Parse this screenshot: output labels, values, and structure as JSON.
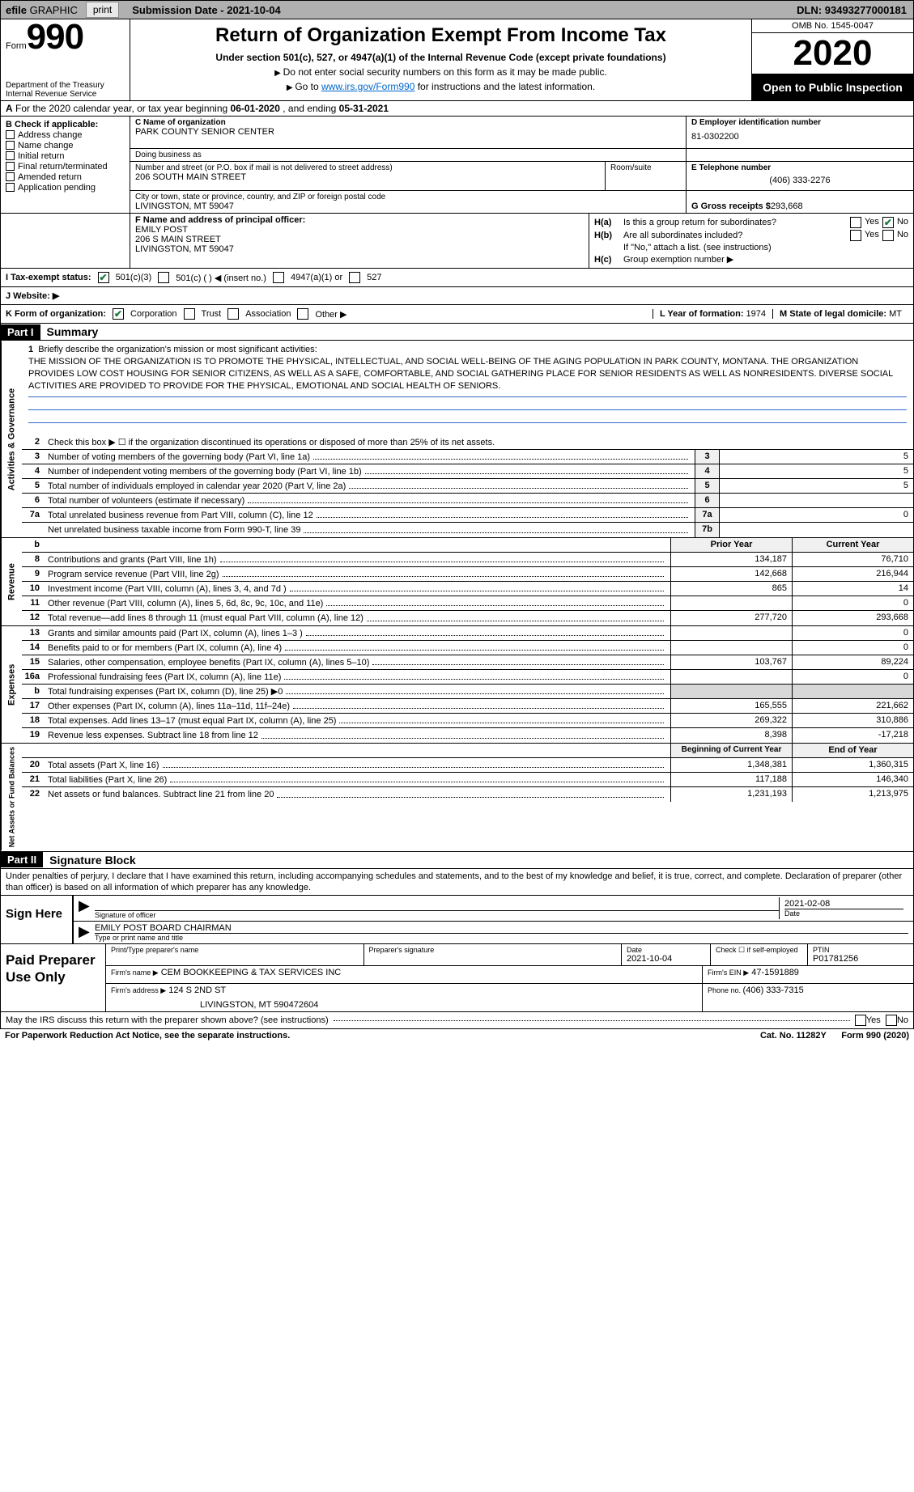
{
  "topbar": {
    "efile_prefix": "efile",
    "efile_graphic": "GRAPHIC",
    "print": "print",
    "submission_label": "Submission Date - ",
    "submission_date": "2021-10-04",
    "dln_label": "DLN: ",
    "dln": "93493277000181"
  },
  "header": {
    "form_prefix": "Form",
    "form_no": "990",
    "dept": "Department of the Treasury\nInternal Revenue Service",
    "title": "Return of Organization Exempt From Income Tax",
    "sub": "Under section 501(c), 527, or 4947(a)(1) of the Internal Revenue Code (except private foundations)",
    "note1": "Do not enter social security numbers on this form as it may be made public.",
    "note2_pre": "Go to ",
    "note2_link": "www.irs.gov/Form990",
    "note2_post": " for instructions and the latest information.",
    "omb": "OMB No. 1545-0047",
    "year": "2020",
    "open": "Open to Public Inspection"
  },
  "rowA": {
    "prefix": "A",
    "text": "For the 2020 calendar year, or tax year beginning ",
    "d1": "06-01-2020",
    "mid": " , and ending ",
    "d2": "05-31-2021"
  },
  "B": {
    "label": "B Check if applicable:",
    "items": [
      "Address change",
      "Name change",
      "Initial return",
      "Final return/terminated",
      "Amended return",
      "Application pending"
    ]
  },
  "C": {
    "name_label": "C Name of organization",
    "name": "PARK COUNTY SENIOR CENTER",
    "dba_label": "Doing business as",
    "dba": "",
    "street_label": "Number and street (or P.O. box if mail is not delivered to street address)",
    "street": "206 SOUTH MAIN STREET",
    "room_label": "Room/suite",
    "city_label": "City or town, state or province, country, and ZIP or foreign postal code",
    "city": "LIVINGSTON, MT  59047"
  },
  "D": {
    "label": "D Employer identification number",
    "val": "81-0302200"
  },
  "E": {
    "label": "E Telephone number",
    "val": "(406) 333-2276"
  },
  "G": {
    "label": "G Gross receipts $ ",
    "val": "293,668"
  },
  "F": {
    "label": "F  Name and address of principal officer:",
    "name": "EMILY POST",
    "street": "206 S MAIN STREET",
    "city": "LIVINGSTON, MT  59047"
  },
  "H": {
    "a": "Is this a group return for subordinates?",
    "b": "Are all subordinates included?",
    "note": "If \"No,\" attach a list. (see instructions)",
    "c": "Group exemption number ▶",
    "yes": "Yes",
    "no": "No"
  },
  "I": {
    "label": "I  Tax-exempt status:",
    "o1": "501(c)(3)",
    "o2": "501(c) (  ) ◀ (insert no.)",
    "o3": "4947(a)(1) or",
    "o4": "527"
  },
  "J": {
    "label": "J  Website: ▶"
  },
  "K": {
    "label": "K Form of organization:",
    "o1": "Corporation",
    "o2": "Trust",
    "o3": "Association",
    "o4": "Other ▶",
    "L": "L Year of formation: ",
    "Lval": "1974",
    "M": "M State of legal domicile: ",
    "Mval": "MT"
  },
  "partI": {
    "hdr": "Part I",
    "title": "Summary"
  },
  "mission": {
    "num": "1",
    "label": "Briefly describe the organization's mission or most significant activities:",
    "text": "THE MISSION OF THE ORGANIZATION IS TO PROMOTE THE PHYSICAL, INTELLECTUAL, AND SOCIAL WELL-BEING OF THE AGING POPULATION IN PARK COUNTY, MONTANA. THE ORGANIZATION PROVIDES LOW COST HOUSING FOR SENIOR CITIZENS, AS WELL AS A SAFE, COMFORTABLE, AND SOCIAL GATHERING PLACE FOR SENIOR RESIDENTS AS WELL AS NONRESIDENTS. DIVERSE SOCIAL ACTIVITIES ARE PROVIDED TO PROVIDE FOR THE PHYSICAL, EMOTIONAL AND SOCIAL HEALTH OF SENIORS."
  },
  "gov": [
    {
      "n": "2",
      "d": "Check this box ▶ ☐ if the organization discontinued its operations or disposed of more than 25% of its net assets."
    },
    {
      "n": "3",
      "d": "Number of voting members of the governing body (Part VI, line 1a)",
      "b": "3",
      "v": "5"
    },
    {
      "n": "4",
      "d": "Number of independent voting members of the governing body (Part VI, line 1b)",
      "b": "4",
      "v": "5"
    },
    {
      "n": "5",
      "d": "Total number of individuals employed in calendar year 2020 (Part V, line 2a)",
      "b": "5",
      "v": "5"
    },
    {
      "n": "6",
      "d": "Total number of volunteers (estimate if necessary)",
      "b": "6",
      "v": ""
    },
    {
      "n": "7a",
      "d": "Total unrelated business revenue from Part VIII, column (C), line 12",
      "b": "7a",
      "v": "0"
    },
    {
      "n": "",
      "d": "Net unrelated business taxable income from Form 990-T, line 39",
      "b": "7b",
      "v": ""
    }
  ],
  "rev_hdr": {
    "b": "b",
    "c1": "Prior Year",
    "c2": "Current Year"
  },
  "rev": [
    {
      "n": "8",
      "d": "Contributions and grants (Part VIII, line 1h)",
      "v1": "134,187",
      "v2": "76,710"
    },
    {
      "n": "9",
      "d": "Program service revenue (Part VIII, line 2g)",
      "v1": "142,668",
      "v2": "216,944"
    },
    {
      "n": "10",
      "d": "Investment income (Part VIII, column (A), lines 3, 4, and 7d )",
      "v1": "865",
      "v2": "14"
    },
    {
      "n": "11",
      "d": "Other revenue (Part VIII, column (A), lines 5, 6d, 8c, 9c, 10c, and 11e)",
      "v1": "",
      "v2": "0"
    },
    {
      "n": "12",
      "d": "Total revenue—add lines 8 through 11 (must equal Part VIII, column (A), line 12)",
      "v1": "277,720",
      "v2": "293,668"
    }
  ],
  "exp": [
    {
      "n": "13",
      "d": "Grants and similar amounts paid (Part IX, column (A), lines 1–3 )",
      "v1": "",
      "v2": "0"
    },
    {
      "n": "14",
      "d": "Benefits paid to or for members (Part IX, column (A), line 4)",
      "v1": "",
      "v2": "0"
    },
    {
      "n": "15",
      "d": "Salaries, other compensation, employee benefits (Part IX, column (A), lines 5–10)",
      "v1": "103,767",
      "v2": "89,224"
    },
    {
      "n": "16a",
      "d": "Professional fundraising fees (Part IX, column (A), line 11e)",
      "v1": "",
      "v2": "0"
    },
    {
      "n": "b",
      "d": "Total fundraising expenses (Part IX, column (D), line 25) ▶0",
      "v1": "__shade__",
      "v2": "__shade__"
    },
    {
      "n": "17",
      "d": "Other expenses (Part IX, column (A), lines 11a–11d, 11f–24e)",
      "v1": "165,555",
      "v2": "221,662"
    },
    {
      "n": "18",
      "d": "Total expenses. Add lines 13–17 (must equal Part IX, column (A), line 25)",
      "v1": "269,322",
      "v2": "310,886"
    },
    {
      "n": "19",
      "d": "Revenue less expenses. Subtract line 18 from line 12",
      "v1": "8,398",
      "v2": "-17,218"
    }
  ],
  "na_hdr": {
    "c1": "Beginning of Current Year",
    "c2": "End of Year"
  },
  "na": [
    {
      "n": "20",
      "d": "Total assets (Part X, line 16)",
      "v1": "1,348,381",
      "v2": "1,360,315"
    },
    {
      "n": "21",
      "d": "Total liabilities (Part X, line 26)",
      "v1": "117,188",
      "v2": "146,340"
    },
    {
      "n": "22",
      "d": "Net assets or fund balances. Subtract line 21 from line 20",
      "v1": "1,231,193",
      "v2": "1,213,975"
    }
  ],
  "vlabels": {
    "gov": "Activities & Governance",
    "rev": "Revenue",
    "exp": "Expenses",
    "na": "Net Assets or Fund Balances"
  },
  "partII": {
    "hdr": "Part II",
    "title": "Signature Block"
  },
  "declare": "Under penalties of perjury, I declare that I have examined this return, including accompanying schedules and statements, and to the best of my knowledge and belief, it is true, correct, and complete. Declaration of preparer (other than officer) is based on all information of which preparer has any knowledge.",
  "sign": {
    "left": "Sign Here",
    "sig_label": "Signature of officer",
    "date": "2021-02-08",
    "date_label": "Date",
    "name": "EMILY POST  BOARD CHAIRMAN",
    "name_label": "Type or print name and title"
  },
  "paid": {
    "left": "Paid Preparer Use Only",
    "r1": {
      "c1l": "Print/Type preparer's name",
      "c1": "",
      "c2l": "Preparer's signature",
      "c2": "",
      "c3l": "Date",
      "c3": "2021-10-04",
      "c4l": "Check ☐ if self-employed",
      "c5l": "PTIN",
      "c5": "P01781256"
    },
    "r2": {
      "c1l": "Firm's name    ▶",
      "c1": "CEM BOOKKEEPING & TAX SERVICES INC",
      "c2l": "Firm's EIN ▶",
      "c2": "47-1591889"
    },
    "r3": {
      "c1l": "Firm's address ▶",
      "c1": "124 S 2ND ST",
      "c1b": "LIVINGSTON, MT  590472604",
      "c2l": "Phone no. ",
      "c2": "(406) 333-7315"
    }
  },
  "footer": {
    "q": "May the IRS discuss this return with the preparer shown above? (see instructions)",
    "yes": "Yes",
    "no": "No",
    "pra": "For Paperwork Reduction Act Notice, see the separate instructions.",
    "cat": "Cat. No. 11282Y",
    "form": "Form 990 (2020)"
  },
  "colors": {
    "check": "#1a7a3a",
    "link": "#0066cc",
    "shade": "#d8d8d8",
    "rule": "#000000"
  }
}
